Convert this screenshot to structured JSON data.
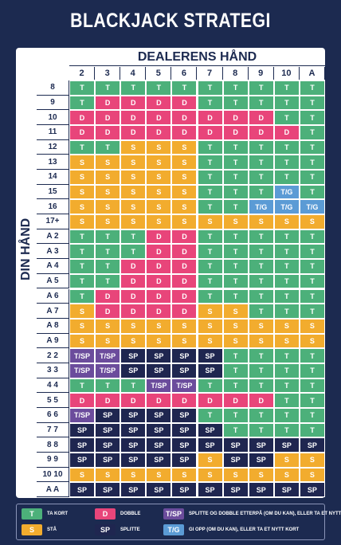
{
  "title": "BLACKJACK STRATEGI",
  "dealer_label": "DEALERENS HÅND",
  "player_label": "DIN HÅND",
  "columns": [
    "2",
    "3",
    "4",
    "5",
    "6",
    "7",
    "8",
    "9",
    "10",
    "A"
  ],
  "rows": [
    {
      "label": "8",
      "cells": [
        "T",
        "T",
        "T",
        "T",
        "T",
        "T",
        "T",
        "T",
        "T",
        "T"
      ]
    },
    {
      "label": "9",
      "cells": [
        "T",
        "D",
        "D",
        "D",
        "D",
        "T",
        "T",
        "T",
        "T",
        "T"
      ]
    },
    {
      "label": "10",
      "cells": [
        "D",
        "D",
        "D",
        "D",
        "D",
        "D",
        "D",
        "D",
        "T",
        "T"
      ]
    },
    {
      "label": "11",
      "cells": [
        "D",
        "D",
        "D",
        "D",
        "D",
        "D",
        "D",
        "D",
        "D",
        "T"
      ]
    },
    {
      "label": "12",
      "cells": [
        "T",
        "T",
        "S",
        "S",
        "S",
        "T",
        "T",
        "T",
        "T",
        "T"
      ]
    },
    {
      "label": "13",
      "cells": [
        "S",
        "S",
        "S",
        "S",
        "S",
        "T",
        "T",
        "T",
        "T",
        "T"
      ]
    },
    {
      "label": "14",
      "cells": [
        "S",
        "S",
        "S",
        "S",
        "S",
        "T",
        "T",
        "T",
        "T",
        "T"
      ]
    },
    {
      "label": "15",
      "cells": [
        "S",
        "S",
        "S",
        "S",
        "S",
        "T",
        "T",
        "T",
        "T/G",
        "T"
      ]
    },
    {
      "label": "16",
      "cells": [
        "S",
        "S",
        "S",
        "S",
        "S",
        "T",
        "T",
        "T/G",
        "T/G",
        "T/G"
      ]
    },
    {
      "label": "17+",
      "cells": [
        "S",
        "S",
        "S",
        "S",
        "S",
        "S",
        "S",
        "S",
        "S",
        "S"
      ]
    },
    {
      "label": "A 2",
      "cells": [
        "T",
        "T",
        "T",
        "D",
        "D",
        "T",
        "T",
        "T",
        "T",
        "T"
      ]
    },
    {
      "label": "A 3",
      "cells": [
        "T",
        "T",
        "T",
        "D",
        "D",
        "T",
        "T",
        "T",
        "T",
        "T"
      ]
    },
    {
      "label": "A 4",
      "cells": [
        "T",
        "T",
        "D",
        "D",
        "D",
        "T",
        "T",
        "T",
        "T",
        "T"
      ]
    },
    {
      "label": "A 5",
      "cells": [
        "T",
        "T",
        "D",
        "D",
        "D",
        "T",
        "T",
        "T",
        "T",
        "T"
      ]
    },
    {
      "label": "A 6",
      "cells": [
        "T",
        "D",
        "D",
        "D",
        "D",
        "T",
        "T",
        "T",
        "T",
        "T"
      ]
    },
    {
      "label": "A 7",
      "cells": [
        "S",
        "D",
        "D",
        "D",
        "D",
        "S",
        "S",
        "T",
        "T",
        "T"
      ]
    },
    {
      "label": "A 8",
      "cells": [
        "S",
        "S",
        "S",
        "S",
        "S",
        "S",
        "S",
        "S",
        "S",
        "S"
      ]
    },
    {
      "label": "A 9",
      "cells": [
        "S",
        "S",
        "S",
        "S",
        "S",
        "S",
        "S",
        "S",
        "S",
        "S"
      ]
    },
    {
      "label": "2 2",
      "cells": [
        "T/SP",
        "T/SP",
        "SP",
        "SP",
        "SP",
        "SP",
        "T",
        "T",
        "T",
        "T"
      ]
    },
    {
      "label": "3 3",
      "cells": [
        "T/SP",
        "T/SP",
        "SP",
        "SP",
        "SP",
        "SP",
        "T",
        "T",
        "T",
        "T"
      ]
    },
    {
      "label": "4 4",
      "cells": [
        "T",
        "T",
        "T",
        "T/SP",
        "T/SP",
        "T",
        "T",
        "T",
        "T",
        "T"
      ]
    },
    {
      "label": "5 5",
      "cells": [
        "D",
        "D",
        "D",
        "D",
        "D",
        "D",
        "D",
        "D",
        "T",
        "T"
      ]
    },
    {
      "label": "6 6",
      "cells": [
        "T/SP",
        "SP",
        "SP",
        "SP",
        "SP",
        "T",
        "T",
        "T",
        "T",
        "T"
      ]
    },
    {
      "label": "7 7",
      "cells": [
        "SP",
        "SP",
        "SP",
        "SP",
        "SP",
        "SP",
        "T",
        "T",
        "T",
        "T"
      ]
    },
    {
      "label": "8 8",
      "cells": [
        "SP",
        "SP",
        "SP",
        "SP",
        "SP",
        "SP",
        "SP",
        "SP",
        "SP",
        "SP"
      ]
    },
    {
      "label": "9 9",
      "cells": [
        "SP",
        "SP",
        "SP",
        "SP",
        "SP",
        "S",
        "SP",
        "SP",
        "S",
        "S"
      ]
    },
    {
      "label": "10 10",
      "cells": [
        "S",
        "S",
        "S",
        "S",
        "S",
        "S",
        "S",
        "S",
        "S",
        "S"
      ]
    },
    {
      "label": "A A",
      "cells": [
        "SP",
        "SP",
        "SP",
        "SP",
        "SP",
        "SP",
        "SP",
        "SP",
        "SP",
        "SP"
      ]
    }
  ],
  "legend": [
    {
      "code": "T",
      "label": "TA KORT",
      "color": "#4cb07a"
    },
    {
      "code": "D",
      "label": "DOBBLE",
      "color": "#e8457a"
    },
    {
      "code": "T/SP",
      "label": "SPLITTE OG DOBBLE ETTERPÅ (OM DU KAN), ELLER TA ET NYTT KORT",
      "color": "#6b4c9c"
    },
    {
      "code": "S",
      "label": "STÅ",
      "color": "#f2ac2e"
    },
    {
      "code": "SP",
      "label": "SPLITTE",
      "color": "#1f2650"
    },
    {
      "code": "T/G",
      "label": "GI OPP (OM DU KAN), ELLER TA ET NYTT KORT",
      "color": "#5b9bd5"
    }
  ]
}
